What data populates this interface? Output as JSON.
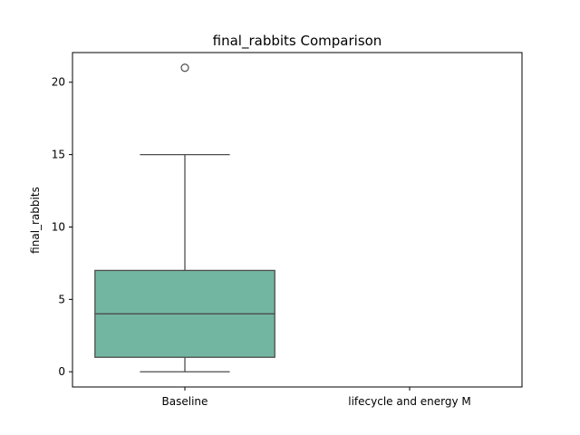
{
  "chart_data": {
    "type": "box",
    "title": "final_rabbits Comparison",
    "xlabel": "",
    "ylabel": "final_rabbits",
    "categories": [
      "Baseline",
      "lifecycle and energy M"
    ],
    "ylim": [
      -1.05,
      22.05
    ],
    "yticks": [
      0,
      5,
      10,
      15,
      20
    ],
    "grid": false,
    "box_color": "#72b6a1",
    "line_color": "#4d4d4d",
    "series": [
      {
        "category": "Baseline",
        "whisker_low": 0,
        "q1": 1,
        "median": 4,
        "q3": 7,
        "whisker_high": 15,
        "outliers": [
          21
        ]
      }
    ]
  }
}
